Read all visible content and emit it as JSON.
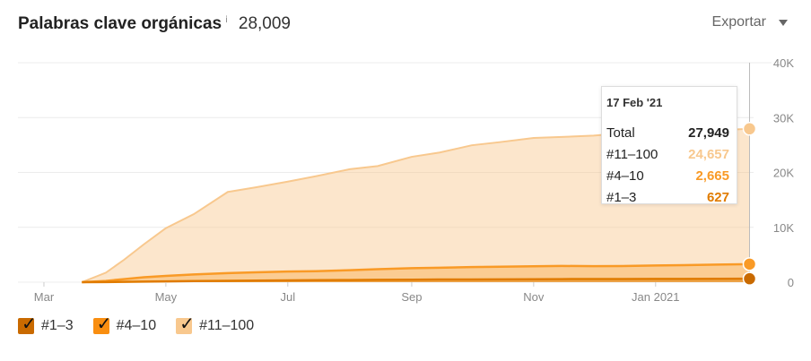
{
  "header": {
    "title": "Palabras clave orgánicas",
    "info_icon": "info-icon",
    "total": "28,009",
    "export_label": "Exportar"
  },
  "colors": {
    "top3": "#e07b00",
    "top10": "#f99a26",
    "top100": "#f8c88e",
    "grid": "#ececec",
    "axis_text": "#888888"
  },
  "tooltip": {
    "date": "17 Feb '21",
    "rows": [
      {
        "label": "Total",
        "value": "27,949",
        "color": "#222222"
      },
      {
        "label": "#11–100",
        "value": "24,657",
        "color": "#f8c88e"
      },
      {
        "label": "#4–10",
        "value": "2,665",
        "color": "#f99a26"
      },
      {
        "label": "#1–3",
        "value": "627",
        "color": "#e07b00"
      }
    ]
  },
  "legend": [
    {
      "label": "#1–3",
      "color": "#c96a00",
      "checked": true
    },
    {
      "label": "#4–10",
      "color": "#f98e10",
      "checked": true
    },
    {
      "label": "#11–100",
      "color": "#f8c88e",
      "checked": true
    }
  ],
  "chart_data": {
    "type": "area",
    "stacked": true,
    "x_tick_labels": [
      "Mar",
      "May",
      "Jul",
      "Sep",
      "Nov",
      "Jan 2021"
    ],
    "y_tick_labels": [
      "0",
      "10K",
      "20K",
      "30K",
      "40K"
    ],
    "ylim": [
      0,
      40000
    ],
    "y_axis_side": "right",
    "grid": true,
    "x": [
      "2020-03-20",
      "2020-04-01",
      "2020-04-10",
      "2020-04-20",
      "2020-05-01",
      "2020-05-15",
      "2020-06-01",
      "2020-06-15",
      "2020-07-01",
      "2020-07-15",
      "2020-08-01",
      "2020-08-15",
      "2020-09-01",
      "2020-09-15",
      "2020-10-01",
      "2020-10-15",
      "2020-11-01",
      "2020-11-15",
      "2020-12-01",
      "2020-12-15",
      "2021-01-01",
      "2021-01-15",
      "2021-02-01",
      "2021-02-17"
    ],
    "series": [
      {
        "name": "#1–3",
        "values": [
          0,
          30,
          60,
          100,
          150,
          200,
          250,
          290,
          330,
          360,
          390,
          420,
          450,
          480,
          500,
          520,
          540,
          560,
          570,
          580,
          590,
          600,
          610,
          627
        ]
      },
      {
        "name": "#4–10",
        "values": [
          0,
          200,
          500,
          800,
          1000,
          1200,
          1400,
          1500,
          1600,
          1650,
          1800,
          1950,
          2100,
          2150,
          2250,
          2300,
          2350,
          2400,
          2350,
          2350,
          2450,
          2500,
          2600,
          2665
        ]
      },
      {
        "name": "#11–100",
        "values": [
          0,
          1500,
          3500,
          6000,
          8700,
          11000,
          14800,
          15500,
          16400,
          17300,
          18400,
          18800,
          20300,
          21000,
          22200,
          22700,
          23400,
          23500,
          23800,
          24200,
          24300,
          24400,
          24500,
          24657
        ]
      }
    ],
    "tooltip_date": "2021-02-17"
  }
}
